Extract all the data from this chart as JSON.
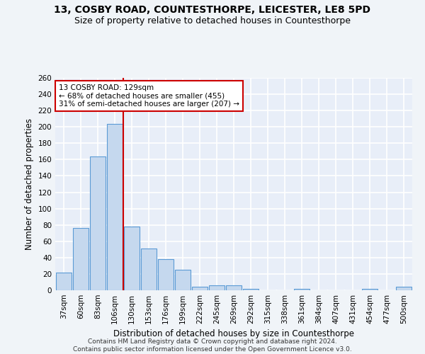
{
  "title1": "13, COSBY ROAD, COUNTESTHORPE, LEICESTER, LE8 5PD",
  "title2": "Size of property relative to detached houses in Countesthorpe",
  "xlabel": "Distribution of detached houses by size in Countesthorpe",
  "ylabel": "Number of detached properties",
  "categories": [
    "37sqm",
    "60sqm",
    "83sqm",
    "106sqm",
    "130sqm",
    "153sqm",
    "176sqm",
    "199sqm",
    "222sqm",
    "245sqm",
    "269sqm",
    "292sqm",
    "315sqm",
    "338sqm",
    "361sqm",
    "384sqm",
    "407sqm",
    "431sqm",
    "454sqm",
    "477sqm",
    "500sqm"
  ],
  "values": [
    22,
    76,
    164,
    204,
    78,
    51,
    38,
    25,
    4,
    6,
    6,
    2,
    0,
    0,
    2,
    0,
    0,
    0,
    2,
    0,
    4
  ],
  "bar_color": "#c5d8ee",
  "bar_edge_color": "#5b9bd5",
  "vline_x_index": 4,
  "vline_color": "#cc0000",
  "annotation_text": "13 COSBY ROAD: 129sqm\n← 68% of detached houses are smaller (455)\n31% of semi-detached houses are larger (207) →",
  "annotation_box_color": "#ffffff",
  "annotation_box_edge_color": "#cc0000",
  "ylim": [
    0,
    260
  ],
  "yticks": [
    0,
    20,
    40,
    60,
    80,
    100,
    120,
    140,
    160,
    180,
    200,
    220,
    240,
    260
  ],
  "background_color": "#e8eef8",
  "grid_color": "#ffffff",
  "footer1": "Contains HM Land Registry data © Crown copyright and database right 2024.",
  "footer2": "Contains public sector information licensed under the Open Government Licence v3.0.",
  "title1_fontsize": 10,
  "title2_fontsize": 9,
  "xlabel_fontsize": 8.5,
  "ylabel_fontsize": 8.5,
  "tick_fontsize": 7.5,
  "footer_fontsize": 6.5
}
